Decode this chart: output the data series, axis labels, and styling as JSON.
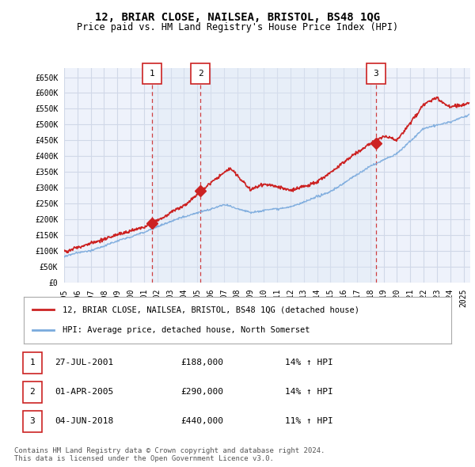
{
  "title": "12, BRIAR CLOSE, NAILSEA, BRISTOL, BS48 1QG",
  "subtitle": "Price paid vs. HM Land Registry's House Price Index (HPI)",
  "background_color": "#ffffff",
  "plot_background": "#eef2fb",
  "grid_color": "#d0d8e8",
  "red_color": "#cc2222",
  "blue_color": "#7aaadd",
  "shade_color": "#dce8f5",
  "transactions": [
    {
      "num": 1,
      "date_x": 2001.58,
      "price": 188000,
      "label": "1"
    },
    {
      "num": 2,
      "date_x": 2005.25,
      "price": 290000,
      "label": "2"
    },
    {
      "num": 3,
      "date_x": 2018.42,
      "price": 440000,
      "label": "3"
    }
  ],
  "vline_color": "#cc2222",
  "legend_entries": [
    "12, BRIAR CLOSE, NAILSEA, BRISTOL, BS48 1QG (detached house)",
    "HPI: Average price, detached house, North Somerset"
  ],
  "table_data": [
    [
      "1",
      "27-JUL-2001",
      "£188,000",
      "14% ↑ HPI"
    ],
    [
      "2",
      "01-APR-2005",
      "£290,000",
      "14% ↑ HPI"
    ],
    [
      "3",
      "04-JUN-2018",
      "£440,000",
      "11% ↑ HPI"
    ]
  ],
  "footnote": "Contains HM Land Registry data © Crown copyright and database right 2024.\nThis data is licensed under the Open Government Licence v3.0.",
  "ylim": [
    0,
    680000
  ],
  "yticks": [
    0,
    50000,
    100000,
    150000,
    200000,
    250000,
    300000,
    350000,
    400000,
    450000,
    500000,
    550000,
    600000,
    650000
  ],
  "ytick_labels": [
    "£0",
    "£50K",
    "£100K",
    "£150K",
    "£200K",
    "£250K",
    "£300K",
    "£350K",
    "£400K",
    "£450K",
    "£500K",
    "£550K",
    "£600K",
    "£650K"
  ],
  "xlim_start": 1995.0,
  "xlim_end": 2025.5,
  "xticks": [
    1995,
    1996,
    1997,
    1998,
    1999,
    2000,
    2001,
    2002,
    2003,
    2004,
    2005,
    2006,
    2007,
    2008,
    2009,
    2010,
    2011,
    2012,
    2013,
    2014,
    2015,
    2016,
    2017,
    2018,
    2019,
    2020,
    2021,
    2022,
    2023,
    2024,
    2025
  ]
}
